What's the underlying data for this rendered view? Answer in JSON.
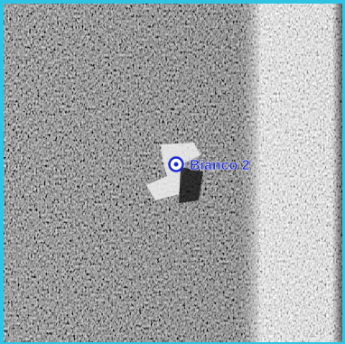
{
  "marker": {
    "label": "Bianco 2"
  }
}
